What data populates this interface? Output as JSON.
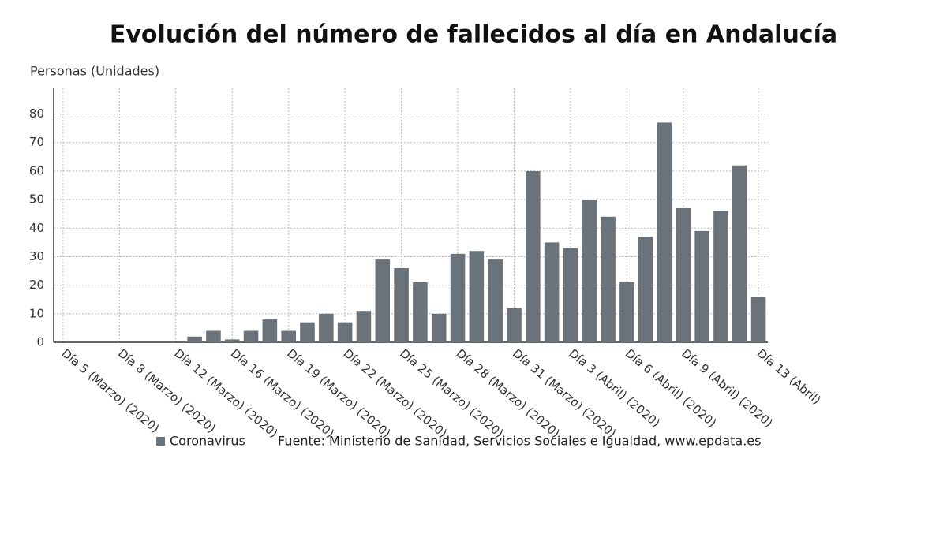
{
  "chart_data": {
    "type": "bar",
    "title": "Evolución del número de fallecidos al día en Andalucía",
    "y_label": "Personas (Unidades)",
    "categories": [
      "Día 5 (Marzo) (2020)",
      null,
      null,
      "Día 8 (Marzo) (2020)",
      null,
      null,
      "Día 12 (Marzo) (2020)",
      null,
      null,
      "Día 16 (Marzo) (2020)",
      null,
      null,
      "Día 19 (Marzo) (2020)",
      null,
      null,
      "Día 22 (Marzo) (2020)",
      null,
      null,
      "Día 25 (Marzo) (2020)",
      null,
      null,
      "Día 28 (Marzo) (2020)",
      null,
      null,
      "Día 31 (Marzo) (2020)",
      null,
      null,
      "Día 3 (Abril) (2020)",
      null,
      null,
      "Día 6 (Abril) (2020)",
      null,
      null,
      "Día 9 (Abril) (2020)",
      null,
      null,
      null,
      "Día 13 (Abril)"
    ],
    "series": [
      {
        "name": "Coronavirus",
        "color": "#6b737a",
        "values": [
          0,
          0,
          0,
          0,
          0,
          0,
          0,
          2,
          4,
          1,
          4,
          8,
          4,
          7,
          10,
          7,
          11,
          29,
          26,
          21,
          10,
          31,
          32,
          29,
          12,
          60,
          35,
          33,
          50,
          44,
          21,
          37,
          77,
          47,
          39,
          46,
          62,
          16
        ]
      }
    ],
    "ylim": [
      0,
      89
    ],
    "yticks": [
      0,
      10,
      20,
      30,
      40,
      50,
      60,
      70,
      80
    ],
    "grid": true,
    "source": "Fuente: Ministerio de Sanidad, Servicios Sociales e Igualdad, www.epdata.es"
  }
}
